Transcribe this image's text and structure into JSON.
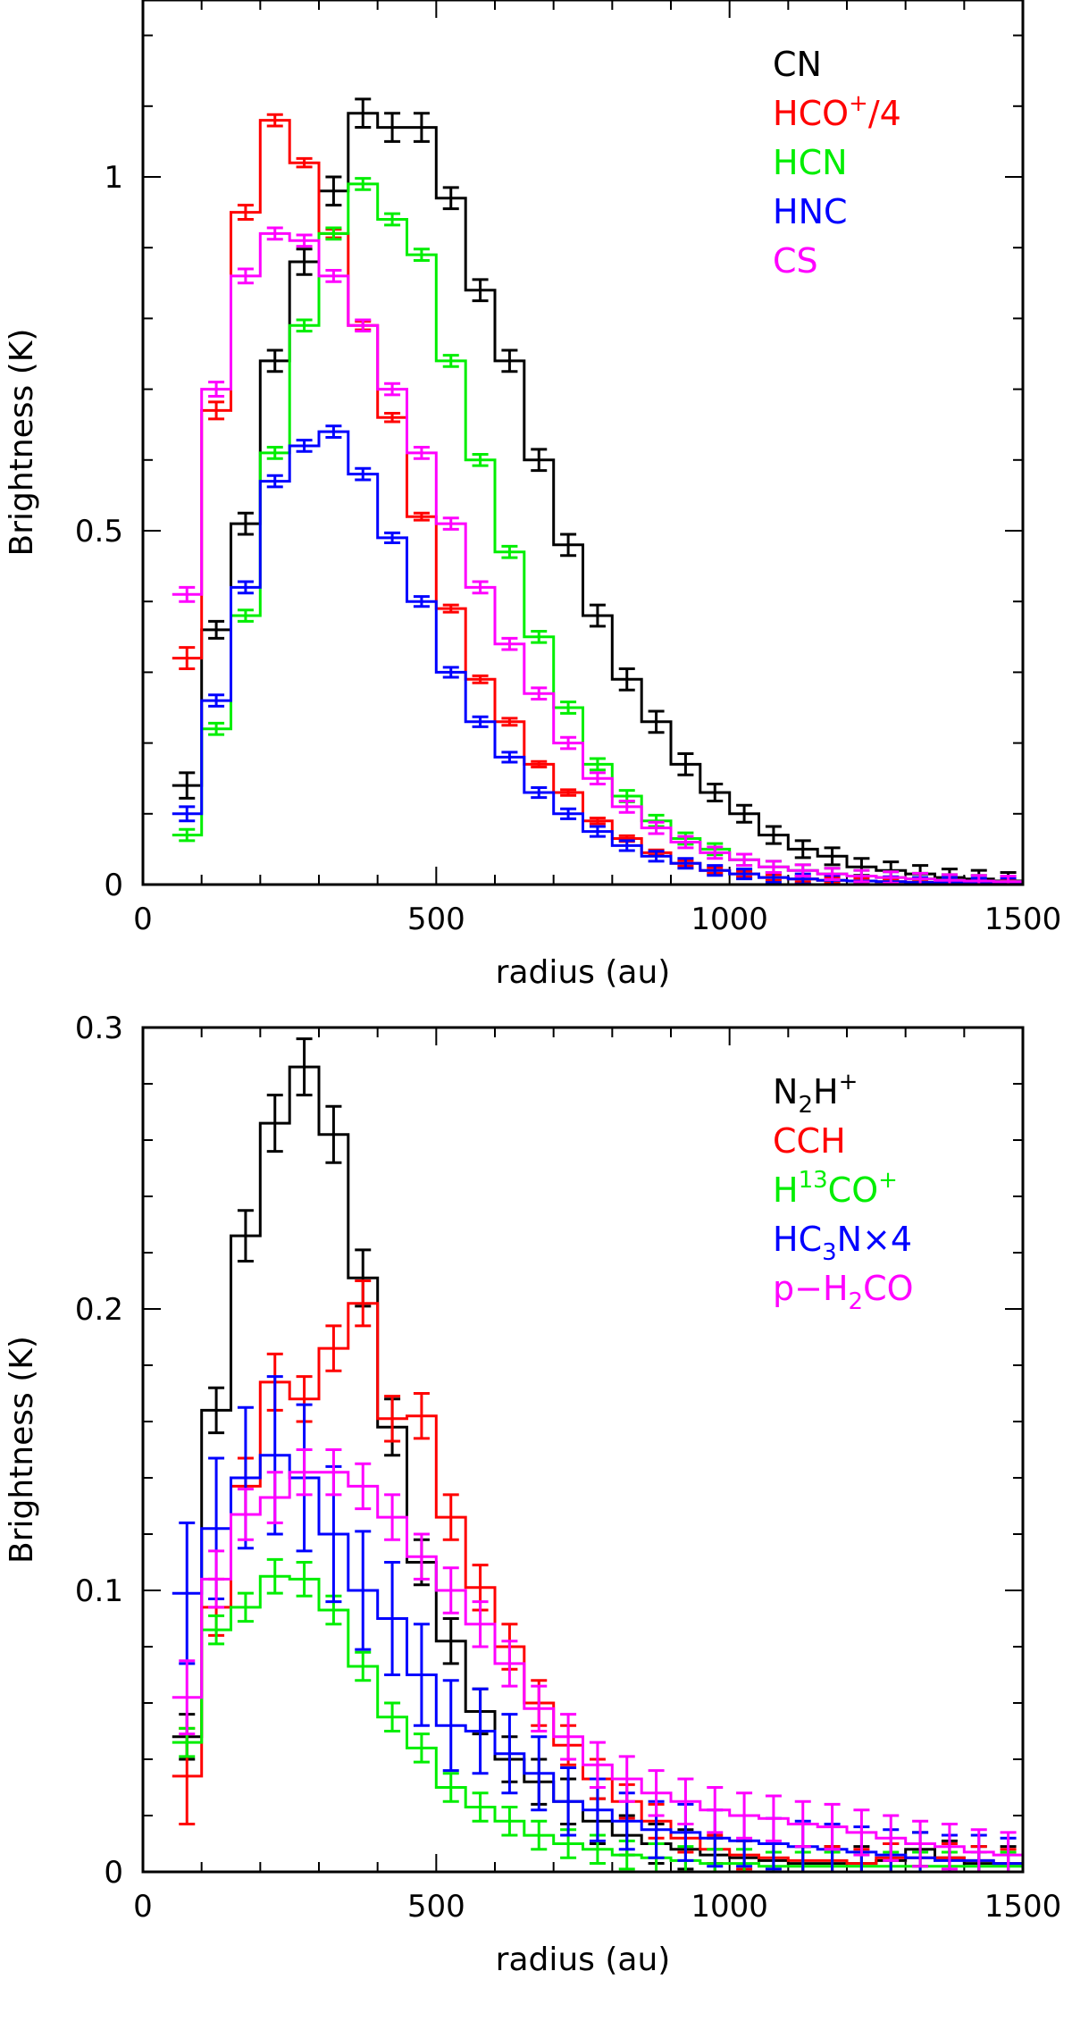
{
  "chart_data": [
    {
      "type": "line",
      "style": "step-with-errorbars",
      "xlabel": "radius (au)",
      "ylabel": "Brightness (K)",
      "xlim": [
        0,
        1500
      ],
      "ylim": [
        0,
        1.25
      ],
      "xticks": [
        0,
        500,
        1000,
        1500
      ],
      "xtick_labels": [
        "0",
        "500",
        "1000",
        "1500"
      ],
      "yticks": [
        0,
        0.5,
        1
      ],
      "ytick_labels": [
        "0",
        "0.5",
        "1"
      ],
      "x_minor_step": 100,
      "y_minor_step": 0.1,
      "legend_position": "top-right",
      "x": [
        75,
        125,
        175,
        225,
        275,
        325,
        375,
        425,
        475,
        525,
        575,
        625,
        675,
        725,
        775,
        825,
        875,
        925,
        975,
        1025,
        1075,
        1125,
        1175,
        1225,
        1275,
        1325,
        1375,
        1425,
        1475
      ],
      "series": [
        {
          "name": "CN",
          "legend_parts": [
            "CN"
          ],
          "color": "#000000",
          "values": [
            0.14,
            0.36,
            0.51,
            0.74,
            0.88,
            0.98,
            1.09,
            1.07,
            1.07,
            0.97,
            0.84,
            0.74,
            0.6,
            0.48,
            0.38,
            0.29,
            0.23,
            0.17,
            0.13,
            0.1,
            0.07,
            0.05,
            0.04,
            0.025,
            0.02,
            0.015,
            0.01,
            0.008,
            0.005
          ],
          "errors": [
            0.018,
            0.012,
            0.015,
            0.015,
            0.018,
            0.02,
            0.02,
            0.02,
            0.02,
            0.015,
            0.015,
            0.015,
            0.015,
            0.015,
            0.015,
            0.015,
            0.015,
            0.015,
            0.012,
            0.012,
            0.012,
            0.012,
            0.012,
            0.012,
            0.012,
            0.012,
            0.012,
            0.012,
            0.012
          ]
        },
        {
          "name": "HCO+/4",
          "legend_parts": [
            "HCO",
            "+",
            "/4"
          ],
          "color": "#ff0000",
          "values": [
            0.32,
            0.67,
            0.95,
            1.08,
            1.02,
            0.92,
            0.79,
            0.66,
            0.52,
            0.39,
            0.29,
            0.23,
            0.17,
            0.13,
            0.09,
            0.065,
            0.045,
            0.03,
            0.02,
            0.015,
            0.01,
            0.008,
            0.006,
            0.005,
            0.004,
            0.003,
            0.003,
            0.002,
            0.002
          ],
          "errors": [
            0.015,
            0.012,
            0.01,
            0.008,
            0.006,
            0.006,
            0.006,
            0.006,
            0.005,
            0.005,
            0.005,
            0.005,
            0.004,
            0.004,
            0.004,
            0.004,
            0.004,
            0.004,
            0.004,
            0.004,
            0.004,
            0.004,
            0.004,
            0.004,
            0.004,
            0.004,
            0.004,
            0.004,
            0.004
          ]
        },
        {
          "name": "HCN",
          "legend_parts": [
            "HCN"
          ],
          "color": "#00ee00",
          "values": [
            0.07,
            0.22,
            0.38,
            0.61,
            0.79,
            0.92,
            0.99,
            0.94,
            0.89,
            0.74,
            0.6,
            0.47,
            0.35,
            0.25,
            0.17,
            0.125,
            0.09,
            0.065,
            0.05,
            0.035,
            0.025,
            0.02,
            0.015,
            0.012,
            0.01,
            0.008,
            0.006,
            0.005,
            0.004
          ],
          "errors": [
            0.008,
            0.008,
            0.008,
            0.008,
            0.008,
            0.008,
            0.008,
            0.008,
            0.008,
            0.008,
            0.008,
            0.008,
            0.008,
            0.008,
            0.008,
            0.008,
            0.008,
            0.008,
            0.008,
            0.008,
            0.008,
            0.008,
            0.008,
            0.008,
            0.008,
            0.008,
            0.008,
            0.008,
            0.008
          ]
        },
        {
          "name": "HNC",
          "legend_parts": [
            "HNC"
          ],
          "color": "#0000ff",
          "values": [
            0.1,
            0.26,
            0.42,
            0.57,
            0.62,
            0.64,
            0.58,
            0.49,
            0.4,
            0.3,
            0.23,
            0.18,
            0.13,
            0.1,
            0.075,
            0.055,
            0.04,
            0.03,
            0.02,
            0.015,
            0.01,
            0.008,
            0.006,
            0.005,
            0.004,
            0.003,
            0.003,
            0.002,
            0.002
          ],
          "errors": [
            0.01,
            0.008,
            0.008,
            0.008,
            0.008,
            0.008,
            0.008,
            0.007,
            0.007,
            0.007,
            0.007,
            0.007,
            0.007,
            0.007,
            0.007,
            0.007,
            0.007,
            0.007,
            0.007,
            0.007,
            0.007,
            0.007,
            0.007,
            0.007,
            0.007,
            0.007,
            0.007,
            0.007,
            0.007
          ]
        },
        {
          "name": "CS",
          "legend_parts": [
            "CS"
          ],
          "color": "#ff00ff",
          "values": [
            0.41,
            0.7,
            0.86,
            0.92,
            0.91,
            0.86,
            0.79,
            0.7,
            0.61,
            0.51,
            0.42,
            0.34,
            0.27,
            0.2,
            0.15,
            0.11,
            0.08,
            0.06,
            0.045,
            0.035,
            0.025,
            0.02,
            0.015,
            0.012,
            0.01,
            0.008,
            0.006,
            0.005,
            0.004
          ],
          "errors": [
            0.01,
            0.01,
            0.01,
            0.008,
            0.008,
            0.008,
            0.008,
            0.008,
            0.008,
            0.008,
            0.008,
            0.008,
            0.008,
            0.008,
            0.008,
            0.008,
            0.008,
            0.008,
            0.008,
            0.008,
            0.008,
            0.008,
            0.008,
            0.008,
            0.008,
            0.008,
            0.008,
            0.008,
            0.008
          ]
        }
      ]
    },
    {
      "type": "line",
      "style": "step-with-errorbars",
      "xlabel": "radius (au)",
      "ylabel": "Brightness (K)",
      "xlim": [
        0,
        1500
      ],
      "ylim": [
        0,
        0.3
      ],
      "xticks": [
        0,
        500,
        1000,
        1500
      ],
      "xtick_labels": [
        "0",
        "500",
        "1000",
        "1500"
      ],
      "yticks": [
        0,
        0.1,
        0.2,
        0.3
      ],
      "ytick_labels": [
        "0",
        "0.1",
        "0.2",
        "0.3"
      ],
      "x_minor_step": 100,
      "y_minor_step": 0.02,
      "legend_position": "top-right",
      "x": [
        75,
        125,
        175,
        225,
        275,
        325,
        375,
        425,
        475,
        525,
        575,
        625,
        675,
        725,
        775,
        825,
        875,
        925,
        975,
        1025,
        1075,
        1125,
        1175,
        1225,
        1275,
        1325,
        1375,
        1425,
        1475
      ],
      "series": [
        {
          "name": "N2H+",
          "legend_parts": [
            "N",
            "2",
            "H",
            "+"
          ],
          "color": "#000000",
          "values": [
            0.048,
            0.164,
            0.226,
            0.266,
            0.286,
            0.262,
            0.211,
            0.158,
            0.11,
            0.082,
            0.057,
            0.04,
            0.032,
            0.025,
            0.018,
            0.013,
            0.01,
            0.008,
            0.006,
            0.005,
            0.004,
            0.003,
            0.003,
            0.003,
            0.004,
            0.008,
            0.005,
            0.003,
            0.003
          ],
          "errors": [
            0.008,
            0.008,
            0.009,
            0.01,
            0.01,
            0.01,
            0.01,
            0.01,
            0.008,
            0.008,
            0.008,
            0.008,
            0.008,
            0.008,
            0.008,
            0.007,
            0.007,
            0.007,
            0.006,
            0.006,
            0.006,
            0.006,
            0.006,
            0.006,
            0.006,
            0.006,
            0.006,
            0.006,
            0.006
          ]
        },
        {
          "name": "CCH",
          "legend_parts": [
            "CCH"
          ],
          "color": "#ff0000",
          "values": [
            0.034,
            0.094,
            0.137,
            0.174,
            0.168,
            0.186,
            0.202,
            0.161,
            0.162,
            0.126,
            0.101,
            0.08,
            0.06,
            0.045,
            0.033,
            0.025,
            0.018,
            0.012,
            0.008,
            0.006,
            0.005,
            0.004,
            0.004,
            0.003,
            0.005,
            0.005,
            0.005,
            0.004,
            0.003
          ],
          "errors": [
            0.017,
            0.01,
            0.01,
            0.01,
            0.008,
            0.008,
            0.008,
            0.008,
            0.008,
            0.008,
            0.008,
            0.008,
            0.008,
            0.007,
            0.007,
            0.006,
            0.006,
            0.005,
            0.005,
            0.005,
            0.005,
            0.005,
            0.005,
            0.005,
            0.005,
            0.005,
            0.005,
            0.005,
            0.005
          ]
        },
        {
          "name": "H13CO+",
          "legend_parts": [
            "H",
            "13",
            "CO",
            "+"
          ],
          "color": "#00ee00",
          "values": [
            0.046,
            0.086,
            0.094,
            0.105,
            0.104,
            0.093,
            0.073,
            0.055,
            0.044,
            0.03,
            0.023,
            0.018,
            0.013,
            0.01,
            0.008,
            0.006,
            0.005,
            0.004,
            0.003,
            0.003,
            0.002,
            0.002,
            0.002,
            0.002,
            0.002,
            0.002,
            0.002,
            0.002,
            0.002
          ],
          "errors": [
            0.005,
            0.005,
            0.005,
            0.006,
            0.006,
            0.005,
            0.005,
            0.005,
            0.005,
            0.005,
            0.005,
            0.005,
            0.005,
            0.005,
            0.005,
            0.005,
            0.005,
            0.005,
            0.005,
            0.005,
            0.005,
            0.005,
            0.005,
            0.005,
            0.005,
            0.005,
            0.005,
            0.005,
            0.005
          ]
        },
        {
          "name": "HC3Nx4",
          "legend_parts": [
            "HC",
            "3",
            "N×4"
          ],
          "color": "#0000ff",
          "values": [
            0.099,
            0.122,
            0.14,
            0.148,
            0.14,
            0.12,
            0.1,
            0.09,
            0.07,
            0.052,
            0.05,
            0.042,
            0.035,
            0.025,
            0.022,
            0.018,
            0.015,
            0.014,
            0.012,
            0.011,
            0.01,
            0.009,
            0.008,
            0.007,
            0.006,
            0.005,
            0.004,
            0.004,
            0.003
          ],
          "errors": [
            0.025,
            0.025,
            0.025,
            0.028,
            0.026,
            0.024,
            0.021,
            0.02,
            0.018,
            0.016,
            0.015,
            0.014,
            0.013,
            0.012,
            0.011,
            0.01,
            0.01,
            0.01,
            0.01,
            0.009,
            0.009,
            0.009,
            0.009,
            0.009,
            0.009,
            0.009,
            0.009,
            0.009,
            0.009
          ]
        },
        {
          "name": "p-H2CO",
          "legend_parts": [
            "p−H",
            "2",
            "CO"
          ],
          "color": "#ff00ff",
          "values": [
            0.062,
            0.104,
            0.127,
            0.133,
            0.142,
            0.142,
            0.137,
            0.126,
            0.112,
            0.1,
            0.088,
            0.074,
            0.058,
            0.048,
            0.038,
            0.033,
            0.028,
            0.025,
            0.022,
            0.02,
            0.019,
            0.017,
            0.016,
            0.014,
            0.012,
            0.01,
            0.009,
            0.007,
            0.006
          ],
          "errors": [
            0.013,
            0.01,
            0.009,
            0.009,
            0.008,
            0.008,
            0.008,
            0.008,
            0.008,
            0.008,
            0.008,
            0.008,
            0.008,
            0.008,
            0.008,
            0.008,
            0.008,
            0.008,
            0.008,
            0.008,
            0.008,
            0.008,
            0.008,
            0.008,
            0.008,
            0.008,
            0.008,
            0.008,
            0.008
          ]
        }
      ]
    }
  ]
}
